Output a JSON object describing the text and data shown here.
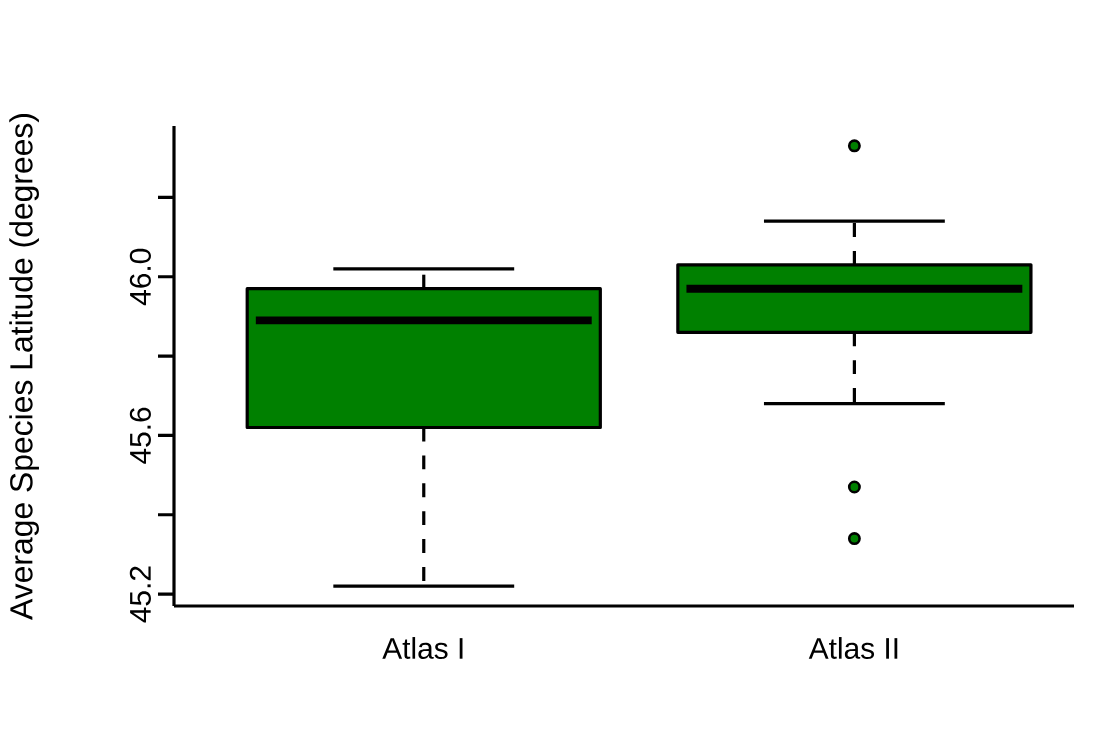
{
  "chart_data": {
    "type": "box",
    "ylabel": "Average Species Latitude (degrees)",
    "categories": [
      "Atlas I",
      "Atlas II"
    ],
    "ylim": [
      45.17,
      46.38
    ],
    "yticks": [
      45.2,
      {
        "value": 45.4,
        "label": null
      },
      45.6,
      {
        "value": 45.8,
        "label": null
      },
      {
        "value": 46.0,
        "label": "46.0"
      },
      {
        "value": 46.2,
        "label": null
      }
    ],
    "series": [
      {
        "color": "#008000",
        "boxes": [
          {
            "low": 45.22,
            "q1": 45.62,
            "median": 45.89,
            "q3": 45.97,
            "high": 46.02
          },
          {
            "low": 45.68,
            "q1": 45.86,
            "median": 45.97,
            "q3": 46.03,
            "high": 46.14,
            "outliers": [
              46.33,
              45.47,
              45.34
            ]
          }
        ]
      }
    ]
  }
}
